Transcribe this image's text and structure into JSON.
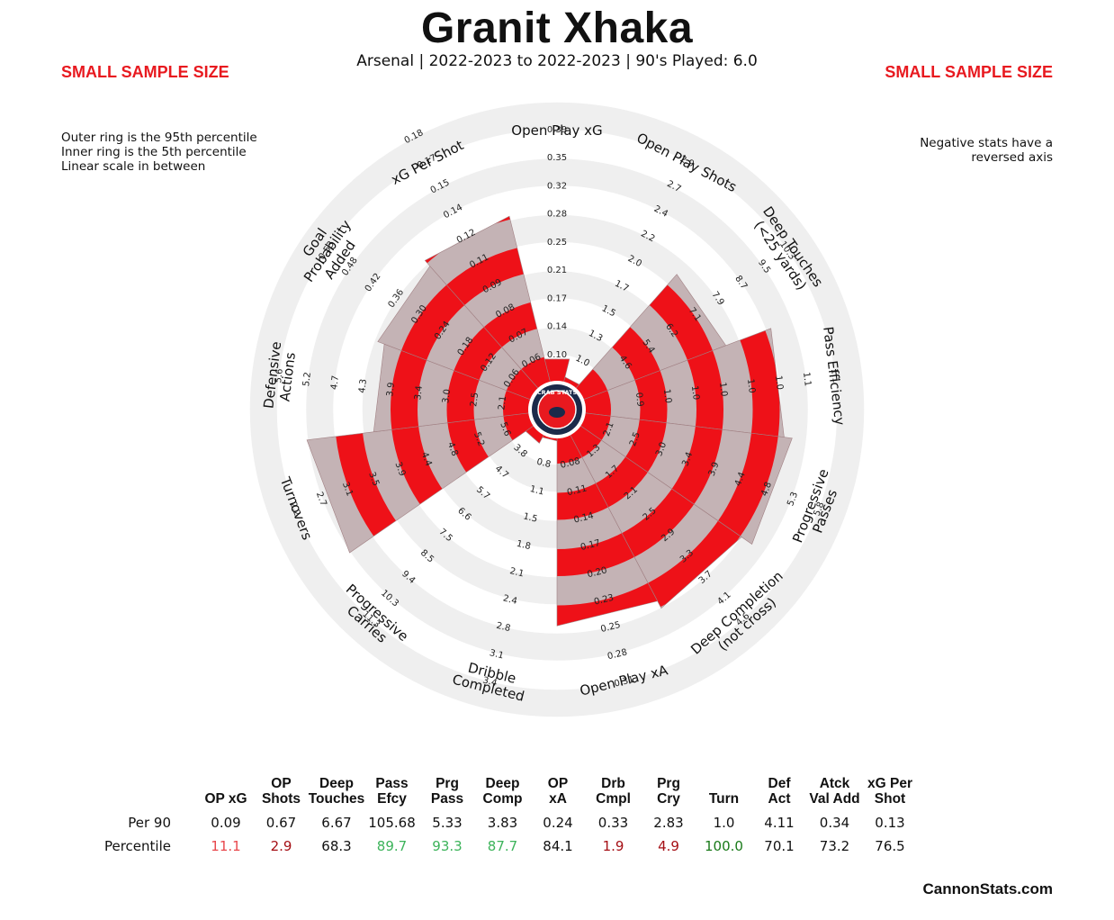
{
  "header": {
    "title": "Granit Xhaka",
    "subtitle": "Arsenal  | 2022-2023 to 2022-2023 | 90's Played: 6.0",
    "warning_left": "SMALL SAMPLE SIZE",
    "warning_right": "SMALL SAMPLE SIZE",
    "note_left": [
      "Outer ring is the 95th percentile",
      "Inner ring is the 5th percentile",
      "Linear scale in between"
    ],
    "note_right": [
      "Negative stats have a",
      "reversed axis"
    ]
  },
  "logo_text": "CRAB STATS",
  "footer": "CannonStats.com",
  "colors": {
    "accent_red": "#ee1118",
    "fill_grey": "#c4b3b5",
    "ring_grey": "#efefef",
    "warn_red": "#e8191f",
    "green": "#3cb35a",
    "dark_green": "#1a7a1a",
    "dark_red": "#a50f15"
  },
  "chart_data": {
    "type": "radar",
    "metrics": [
      {
        "label": [
          "Open Play xG"
        ],
        "ticks": [
          "0.10",
          "0.14",
          "0.17",
          "0.21",
          "0.25",
          "0.28",
          "0.32",
          "0.35",
          "0.39"
        ],
        "percentile": 11.1
      },
      {
        "label": [
          "Open Play Shots"
        ],
        "ticks": [
          "1.0",
          "1.3",
          "1.5",
          "1.7",
          "2.0",
          "2.2",
          "2.4",
          "2.7",
          "2.9"
        ],
        "percentile": 2.9
      },
      {
        "label": [
          "Deep Touches",
          "(<25 yards)"
        ],
        "ticks": [
          "4.6",
          "5.4",
          "6.2",
          "7.1",
          "7.9",
          "8.7",
          "9.5",
          "10.3"
        ],
        "percentile": 68.3
      },
      {
        "label": [
          "Pass Efficiency"
        ],
        "ticks": [
          "0.9",
          "1.0",
          "1.0",
          "1.0",
          "1.0",
          "1.0",
          "1.1",
          "1.1"
        ],
        "percentile": 89.7
      },
      {
        "label": [
          "Progressive",
          "Passes"
        ],
        "ticks": [
          "2.1",
          "2.5",
          "3.0",
          "3.4",
          "3.9",
          "4.4",
          "4.8",
          "5.3",
          "5.8"
        ],
        "percentile": 93.3
      },
      {
        "label": [
          "Deep Completion",
          "(not cross)"
        ],
        "ticks": [
          "1.3",
          "1.7",
          "2.1",
          "2.5",
          "2.9",
          "3.3",
          "3.7",
          "4.1",
          "4.6"
        ],
        "percentile": 87.7
      },
      {
        "label": [
          "Open Play xA"
        ],
        "ticks": [
          "0.08",
          "0.11",
          "0.14",
          "0.17",
          "0.20",
          "0.23",
          "0.25",
          "0.28",
          "0.31"
        ],
        "percentile": 84.1
      },
      {
        "label": [
          "Dribble",
          "Completed"
        ],
        "ticks": [
          "0.8",
          "1.1",
          "1.5",
          "1.8",
          "2.1",
          "2.4",
          "2.8",
          "3.1",
          "3.4"
        ],
        "percentile": 1.9
      },
      {
        "label": [
          "Progressive",
          "Carries"
        ],
        "ticks": [
          "3.8",
          "4.7",
          "5.7",
          "6.6",
          "7.5",
          "8.5",
          "9.4",
          "10.3",
          "11.3"
        ],
        "percentile": 4.9
      },
      {
        "label": [
          "Turnovers"
        ],
        "ticks": [
          "5.6",
          "5.2",
          "4.8",
          "4.4",
          "3.9",
          "3.5",
          "3.1",
          "2.7",
          "2.2"
        ],
        "percentile": 100.0
      },
      {
        "label": [
          "Defensive",
          "Actions"
        ],
        "ticks": [
          "2.1",
          "2.5",
          "3.0",
          "3.4",
          "3.9",
          "4.3",
          "4.7",
          "5.2",
          "5.6"
        ],
        "percentile": 70.1
      },
      {
        "label": [
          "Goal",
          "Probability",
          "Added"
        ],
        "ticks": [
          "0.06",
          "0.12",
          "0.18",
          "0.24",
          "0.30",
          "0.36",
          "0.42",
          "0.48",
          "0.53"
        ],
        "percentile": 73.2
      },
      {
        "label": [
          "xG Per Shot"
        ],
        "ticks": [
          "0.06",
          "0.07",
          "0.08",
          "0.09",
          "0.11",
          "0.12",
          "0.14",
          "0.15",
          "0.17",
          "0.18"
        ],
        "percentile": 76.5
      }
    ]
  },
  "table": {
    "headers": [
      [
        "",
        "OP xG"
      ],
      [
        "OP",
        "Shots"
      ],
      [
        "Deep",
        "Touches"
      ],
      [
        "Pass",
        "Efcy"
      ],
      [
        "Prg",
        "Pass"
      ],
      [
        "Deep",
        "Comp"
      ],
      [
        "OP",
        "xA"
      ],
      [
        "Drb",
        "Cmpl"
      ],
      [
        "Prg",
        "Cry"
      ],
      [
        "",
        "Turn"
      ],
      [
        "Def",
        "Act"
      ],
      [
        "Atck",
        "Val Add"
      ],
      [
        "xG Per",
        "Shot"
      ]
    ],
    "rows": [
      {
        "label": "Per 90",
        "values": [
          "0.09",
          "0.67",
          "6.67",
          "105.68",
          "5.33",
          "3.83",
          "0.24",
          "0.33",
          "2.83",
          "1.0",
          "4.11",
          "0.34",
          "0.13"
        ]
      },
      {
        "label": "Percentile",
        "values": [
          "11.1",
          "2.9",
          "68.3",
          "89.7",
          "93.3",
          "87.7",
          "84.1",
          "1.9",
          "4.9",
          "100.0",
          "70.1",
          "73.2",
          "76.5"
        ]
      }
    ],
    "percentile_colors": [
      "#e8474c",
      "#a50f15",
      "#111111",
      "#3cb35a",
      "#3cb35a",
      "#3cb35a",
      "#111111",
      "#a50f15",
      "#a50f15",
      "#1a7a1a",
      "#111111",
      "#111111",
      "#111111"
    ]
  }
}
